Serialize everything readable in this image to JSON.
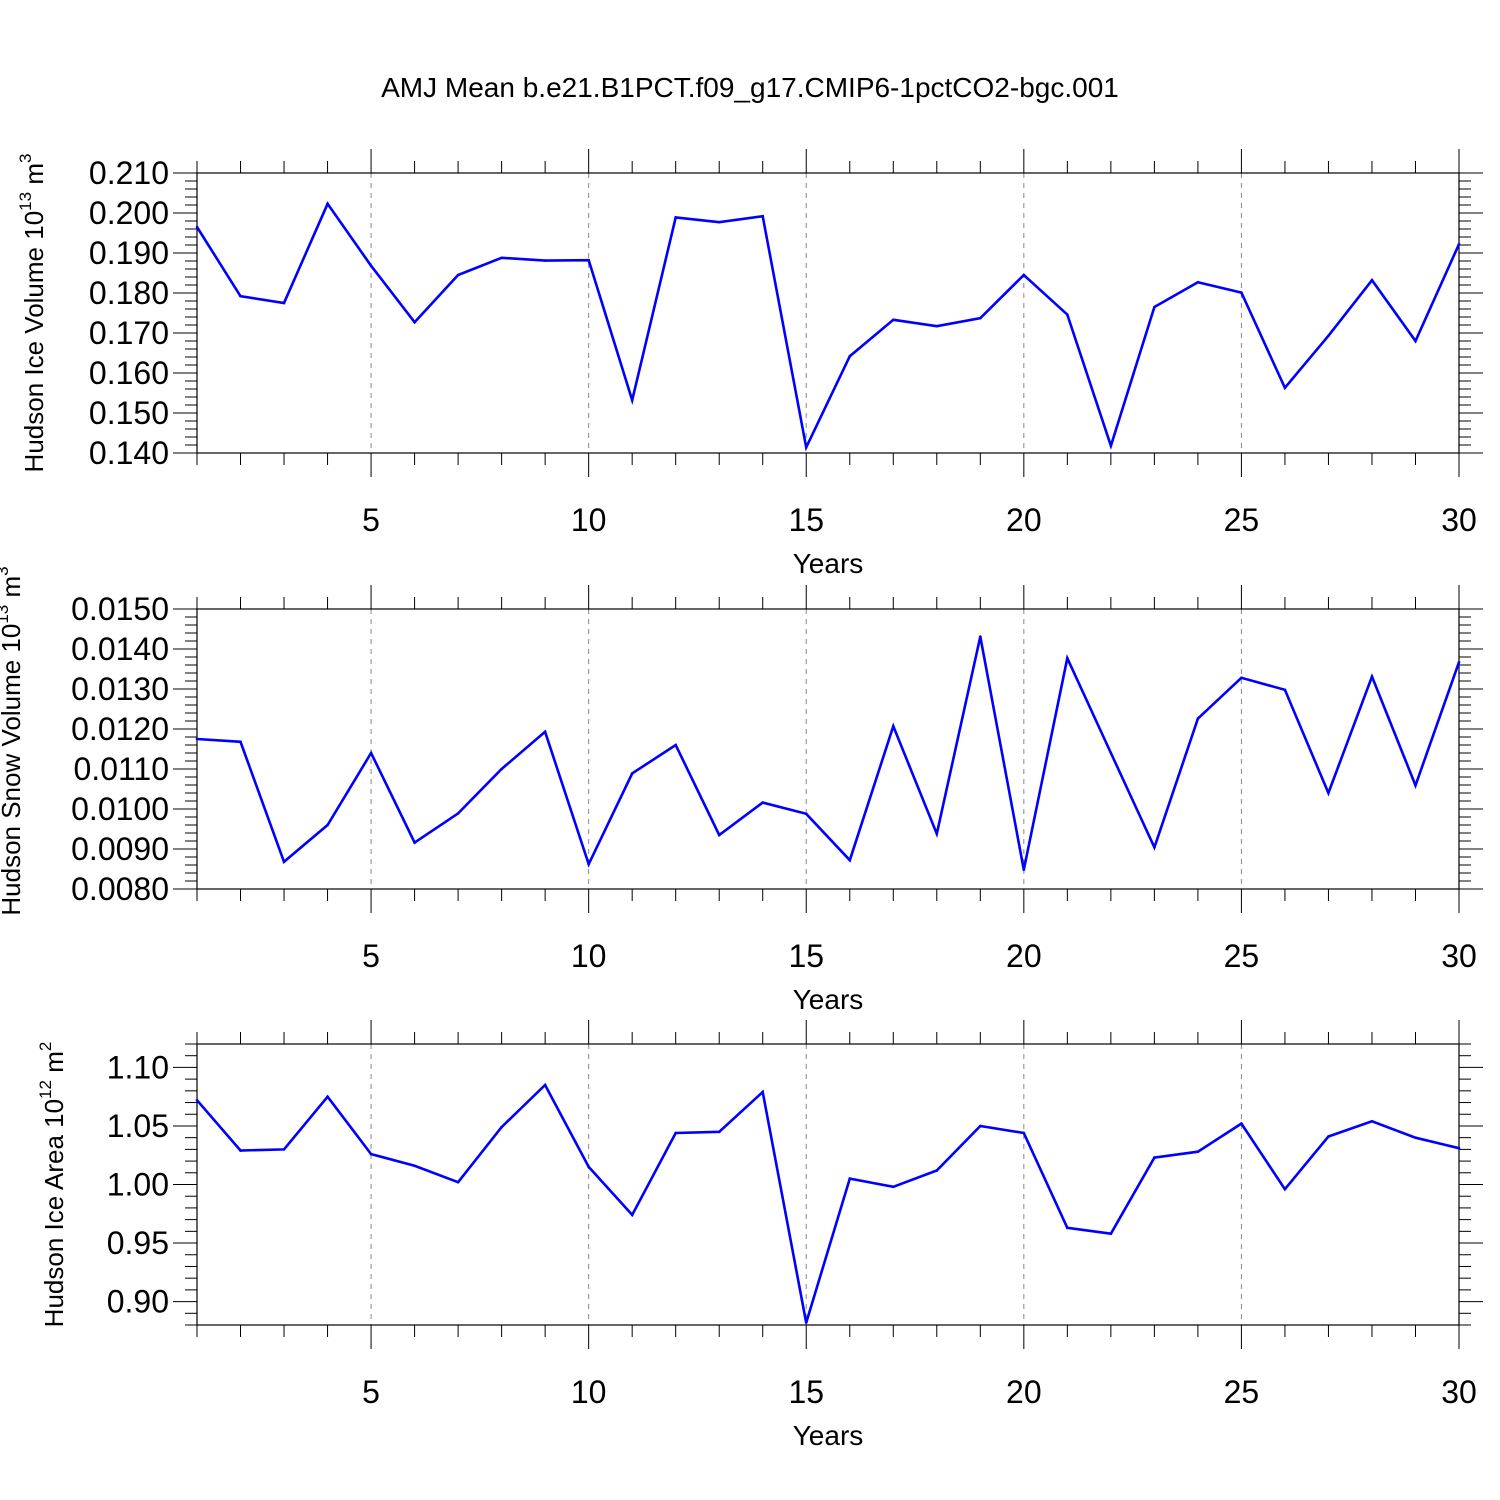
{
  "title": "AMJ Mean b.e21.B1PCT.f09_g17.CMIP6-1pctCO2-bgc.001",
  "colors": {
    "line": "#0000ff",
    "axis": "#000000",
    "grid": "#888888"
  },
  "chart_data": [
    {
      "type": "line",
      "xlabel": "Years",
      "ylabel": {
        "text": "Hudson Ice Volume 10",
        "exp": "13",
        "unit": " m",
        "unit_exp": "3"
      },
      "xlim": [
        1,
        30
      ],
      "ylim": [
        0.14,
        0.21
      ],
      "xticks": [
        5,
        10,
        15,
        20,
        25,
        30
      ],
      "yticks": [
        0.14,
        0.15,
        0.16,
        0.17,
        0.18,
        0.19,
        0.2,
        0.21
      ],
      "ytick_labels": [
        "0.140",
        "0.150",
        "0.160",
        "0.170",
        "0.180",
        "0.190",
        "0.200",
        "0.210"
      ],
      "grid": "x-dashed",
      "x": [
        1,
        2,
        3,
        4,
        5,
        6,
        7,
        8,
        9,
        10,
        11,
        12,
        13,
        14,
        15,
        16,
        17,
        18,
        19,
        20,
        21,
        22,
        23,
        24,
        25,
        26,
        27,
        28,
        29,
        30
      ],
      "series": [
        {
          "values": [
            0.1965,
            0.1792,
            0.1775,
            0.2023,
            0.1868,
            0.1727,
            0.1845,
            0.1888,
            0.1881,
            0.1882,
            0.1532,
            0.1989,
            0.1977,
            0.1992,
            0.1414,
            0.1642,
            0.1733,
            0.1717,
            0.1737,
            0.1845,
            0.1746,
            0.1418,
            0.1765,
            0.1827,
            0.1801,
            0.1563,
            0.1693,
            0.1832,
            0.168,
            0.1922
          ]
        }
      ]
    },
    {
      "type": "line",
      "xlabel": "Years",
      "ylabel": {
        "text": "Hudson Snow Volume 10",
        "exp": "13",
        "unit": " m",
        "unit_exp": "3"
      },
      "xlim": [
        1,
        30
      ],
      "ylim": [
        0.008,
        0.015
      ],
      "xticks": [
        5,
        10,
        15,
        20,
        25,
        30
      ],
      "yticks": [
        0.008,
        0.009,
        0.01,
        0.011,
        0.012,
        0.013,
        0.014,
        0.015
      ],
      "ytick_labels": [
        "0.0080",
        "0.0090",
        "0.0100",
        "0.0110",
        "0.0120",
        "0.0130",
        "0.0140",
        "0.0150"
      ],
      "grid": "x-dashed",
      "x": [
        1,
        2,
        3,
        4,
        5,
        6,
        7,
        8,
        9,
        10,
        11,
        12,
        13,
        14,
        15,
        16,
        17,
        18,
        19,
        20,
        21,
        22,
        23,
        24,
        25,
        26,
        27,
        28,
        29,
        30
      ],
      "series": [
        {
          "values": [
            0.01175,
            0.01168,
            0.00868,
            0.0096,
            0.0114,
            0.00916,
            0.00989,
            0.011,
            0.01193,
            0.00862,
            0.01089,
            0.0116,
            0.00935,
            0.01016,
            0.00988,
            0.00872,
            0.01207,
            0.00938,
            0.01431,
            0.00848,
            0.01377,
            0.0114,
            0.00904,
            0.01226,
            0.01328,
            0.01298,
            0.0104,
            0.01331,
            0.01059,
            0.01367
          ]
        }
      ]
    },
    {
      "type": "line",
      "xlabel": "Years",
      "ylabel": {
        "text": "Hudson Ice Area 10",
        "exp": "12",
        "unit": " m",
        "unit_exp": "2"
      },
      "xlim": [
        1,
        30
      ],
      "ylim": [
        0.88,
        1.12
      ],
      "xticks": [
        5,
        10,
        15,
        20,
        25,
        30
      ],
      "yticks": [
        0.9,
        0.95,
        1.0,
        1.05,
        1.1
      ],
      "ytick_labels": [
        "0.90",
        "0.95",
        "1.00",
        "1.05",
        "1.10"
      ],
      "grid": "x-dashed",
      "x": [
        1,
        2,
        3,
        4,
        5,
        6,
        7,
        8,
        9,
        10,
        11,
        12,
        13,
        14,
        15,
        16,
        17,
        18,
        19,
        20,
        21,
        22,
        23,
        24,
        25,
        26,
        27,
        28,
        29,
        30
      ],
      "series": [
        {
          "values": [
            1.072,
            1.029,
            1.03,
            1.075,
            1.026,
            1.016,
            1.002,
            1.049,
            1.085,
            1.015,
            0.974,
            1.044,
            1.045,
            1.079,
            0.882,
            1.005,
            0.998,
            1.012,
            1.05,
            1.044,
            0.963,
            0.958,
            1.023,
            1.028,
            1.052,
            0.996,
            1.041,
            1.054,
            1.04,
            1.031
          ]
        }
      ]
    }
  ]
}
